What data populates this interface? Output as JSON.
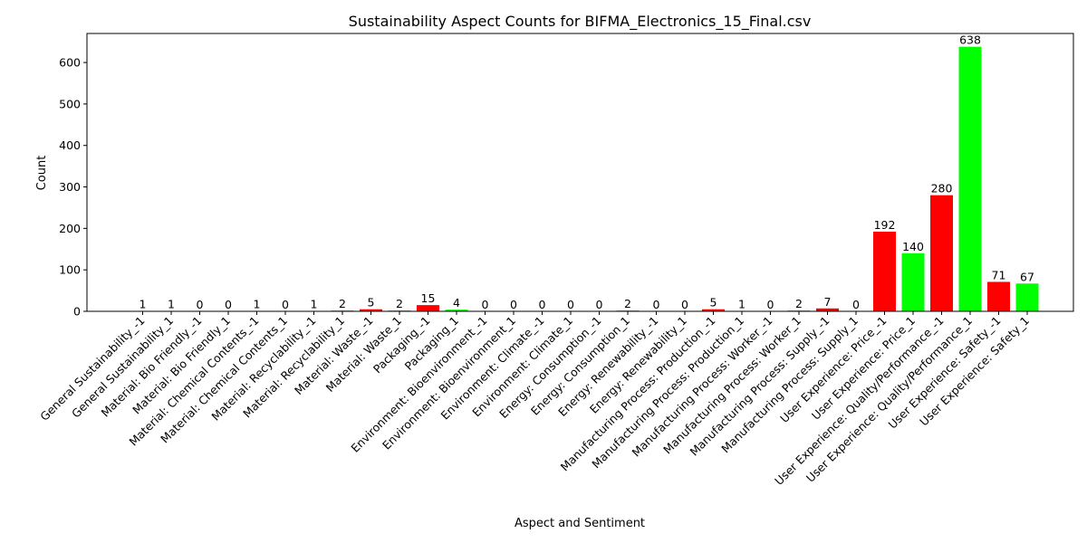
{
  "chart_data": {
    "type": "bar",
    "title": "Sustainability Aspect Counts for BIFMA_Electronics_15_Final.csv",
    "xlabel": "Aspect and Sentiment",
    "ylabel": "Count",
    "ylim": [
      0,
      670
    ],
    "yticks": [
      0,
      100,
      200,
      300,
      400,
      500,
      600
    ],
    "grid": false,
    "colors": {
      "negative": "#ff0000",
      "positive": "#00ff00"
    },
    "categories": [
      "General Sustainability_-1",
      "General Sustainability_1",
      "Material: Bio Friendly_-1",
      "Material: Bio Friendly_1",
      "Material: Chemical Contents_-1",
      "Material: Chemical Contents_1",
      "Material: Recyclability_-1",
      "Material: Recyclability_1",
      "Material: Waste_-1",
      "Material: Waste_1",
      "Packaging_-1",
      "Packaging_1",
      "Environment: Bioenvironment_-1",
      "Environment: Bioenvironment_1",
      "Environment: Climate_-1",
      "Environment: Climate_1",
      "Energy: Consumption_-1",
      "Energy: Consumption_1",
      "Energy: Renewability_-1",
      "Energy: Renewability_1",
      "Manufacturing Process: Production_-1",
      "Manufacturing Process: Production_1",
      "Manufacturing Process: Worker_-1",
      "Manufacturing Process: Worker_1",
      "Manufacturing Process: Supply_-1",
      "Manufacturing Process: Supply_1",
      "User Experience: Price_-1",
      "User Experience: Price_1",
      "User Experience: Quality/Performance_-1",
      "User Experience: Quality/Performance_1",
      "User Experience: Safety_-1",
      "User Experience: Safety_1"
    ],
    "values": [
      1,
      1,
      0,
      0,
      1,
      0,
      1,
      2,
      5,
      2,
      15,
      4,
      0,
      0,
      0,
      0,
      0,
      2,
      0,
      0,
      5,
      1,
      0,
      2,
      7,
      0,
      192,
      140,
      280,
      638,
      71,
      67
    ],
    "sentiment": [
      "negative",
      "positive",
      "negative",
      "positive",
      "negative",
      "positive",
      "negative",
      "positive",
      "negative",
      "positive",
      "negative",
      "positive",
      "negative",
      "positive",
      "negative",
      "positive",
      "negative",
      "positive",
      "negative",
      "positive",
      "negative",
      "positive",
      "negative",
      "positive",
      "negative",
      "positive",
      "negative",
      "positive",
      "negative",
      "positive",
      "negative",
      "positive"
    ]
  }
}
